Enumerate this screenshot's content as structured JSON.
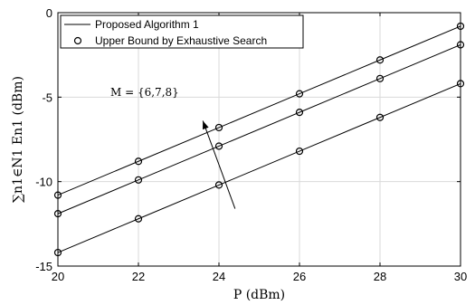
{
  "chart_data": {
    "type": "line",
    "xlabel": "P (dBm)",
    "ylabel": "∑n1∈N1 En1 (dBm)",
    "xlim": [
      20,
      30
    ],
    "ylim": [
      -15,
      0
    ],
    "xticks": [
      20,
      22,
      24,
      26,
      28,
      30
    ],
    "yticks": [
      0,
      -5,
      -10,
      -15
    ],
    "xtick_labels": [
      "20",
      "22",
      "24",
      "26",
      "28",
      "30"
    ],
    "ytick_labels": [
      "0",
      "-5",
      "-10",
      "-15"
    ],
    "grid": true,
    "legend": {
      "placement": "top-left",
      "entries": [
        "Proposed Algorithm 1",
        "Upper Bound by Exhaustive Search"
      ]
    },
    "annotation": {
      "text": "M = {6,7,8}",
      "arrow_from": [
        24.4,
        -11.6
      ],
      "arrow_to": [
        23.6,
        -6.4
      ]
    },
    "x": [
      20,
      22,
      24,
      26,
      28,
      30
    ],
    "series": [
      {
        "line": [
          -10.8,
          -8.8,
          -6.8,
          -4.8,
          -2.8,
          -0.8
        ],
        "markers": [
          -10.8,
          -8.8,
          -6.8,
          -4.8,
          -2.8,
          -0.8
        ]
      },
      {
        "line": [
          -11.9,
          -9.9,
          -7.9,
          -5.9,
          -3.9,
          -1.9
        ],
        "markers": [
          -11.9,
          -9.9,
          -7.9,
          -5.9,
          -3.9,
          -1.9
        ]
      },
      {
        "line": [
          -14.2,
          -12.2,
          -10.2,
          -8.2,
          -6.2,
          -4.2
        ],
        "markers": [
          -14.2,
          -12.2,
          -10.2,
          -8.2,
          -6.2,
          -4.2
        ]
      }
    ]
  }
}
